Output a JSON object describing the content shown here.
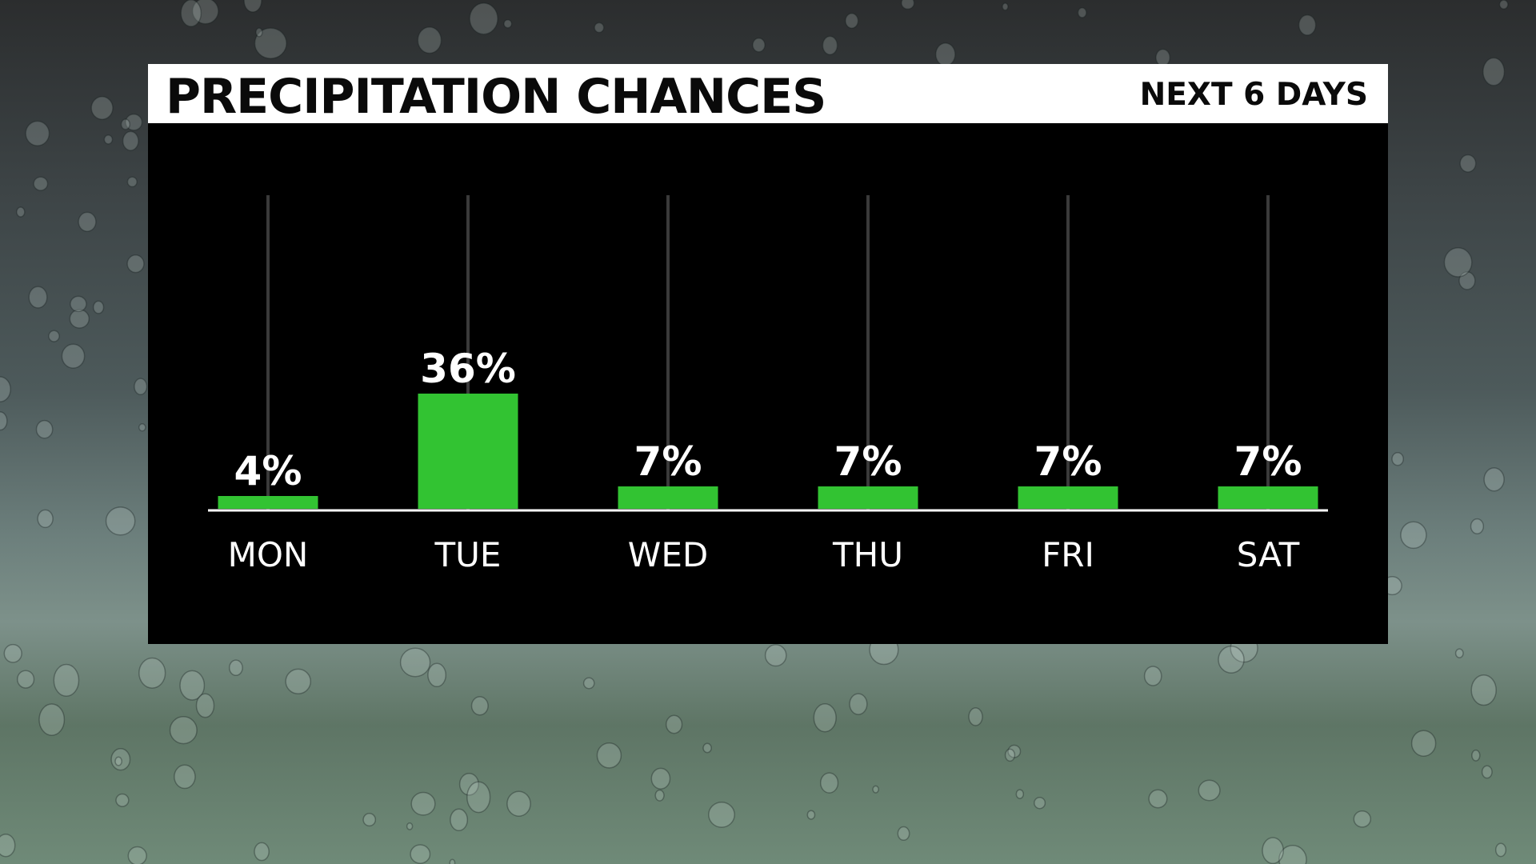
{
  "header": {
    "title": "PRECIPITATION CHANCES",
    "subtitle": "NEXT 6 DAYS"
  },
  "colors": {
    "bar": "#32c332",
    "panel": "#000000",
    "header_bg": "#ffffff",
    "gridline": "#3a3a3a",
    "baseline": "#ffffff"
  },
  "chart_data": {
    "type": "bar",
    "categories": [
      "MON",
      "TUE",
      "WED",
      "THU",
      "FRI",
      "SAT"
    ],
    "values": [
      4,
      36,
      7,
      7,
      7,
      7
    ],
    "data_labels": [
      "4%",
      "36%",
      "7%",
      "7%",
      "7%",
      "7%"
    ],
    "ylim": [
      0,
      100
    ],
    "grid": "vertical",
    "legend": "none"
  }
}
